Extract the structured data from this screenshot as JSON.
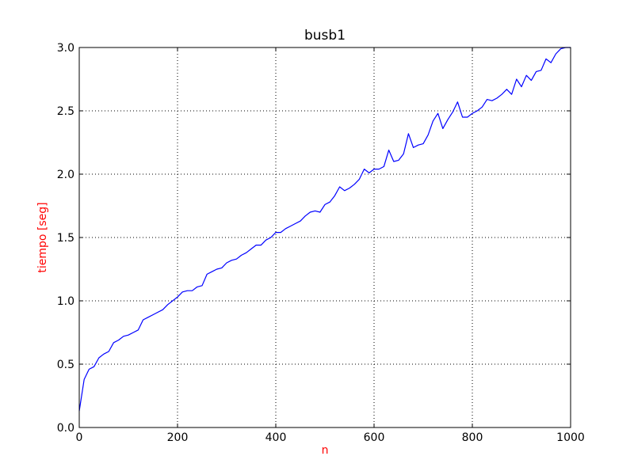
{
  "chart_data": {
    "type": "line",
    "title": "busb1",
    "xlabel": "n",
    "ylabel": "tiempo [seg]",
    "xlim": [
      0,
      1000
    ],
    "ylim": [
      0,
      3.0
    ],
    "grid": true,
    "x_ticks": [
      0,
      200,
      400,
      600,
      800,
      1000
    ],
    "x_tick_labels": [
      "0",
      "200",
      "400",
      "600",
      "800",
      "1000"
    ],
    "y_ticks": [
      0,
      0.5,
      1.0,
      1.5,
      2.0,
      2.5,
      3.0
    ],
    "y_tick_labels": [
      "0.0",
      "0.5",
      "1.0",
      "1.5",
      "2.0",
      "2.5",
      "3.0"
    ],
    "colors": {
      "line": "#0000ff",
      "axis_labels": "#ff0000",
      "grid": "#000000"
    },
    "series": [
      {
        "x": [
          0,
          10,
          20,
          30,
          40,
          50,
          60,
          70,
          80,
          90,
          100,
          110,
          120,
          130,
          140,
          150,
          160,
          170,
          180,
          190,
          200,
          210,
          220,
          230,
          240,
          250,
          260,
          270,
          280,
          290,
          300,
          310,
          320,
          330,
          340,
          350,
          360,
          370,
          380,
          390,
          400,
          410,
          420,
          430,
          440,
          450,
          460,
          470,
          480,
          490,
          500,
          510,
          520,
          530,
          540,
          550,
          560,
          570,
          580,
          590,
          600,
          610,
          620,
          630,
          640,
          650,
          660,
          670,
          680,
          690,
          700,
          710,
          720,
          730,
          740,
          750,
          760,
          770,
          780,
          790,
          800,
          810,
          820,
          830,
          840,
          850,
          860,
          870,
          880,
          890,
          900,
          910,
          920,
          930,
          940,
          950,
          960,
          970,
          980,
          990,
          1000
        ],
        "values": [
          0.13,
          0.38,
          0.46,
          0.48,
          0.55,
          0.58,
          0.6,
          0.67,
          0.69,
          0.72,
          0.73,
          0.75,
          0.77,
          0.85,
          0.87,
          0.89,
          0.91,
          0.93,
          0.97,
          1.0,
          1.03,
          1.07,
          1.08,
          1.08,
          1.11,
          1.12,
          1.21,
          1.23,
          1.25,
          1.26,
          1.3,
          1.32,
          1.33,
          1.36,
          1.38,
          1.41,
          1.44,
          1.44,
          1.48,
          1.5,
          1.54,
          1.54,
          1.57,
          1.59,
          1.61,
          1.63,
          1.67,
          1.7,
          1.71,
          1.7,
          1.76,
          1.78,
          1.83,
          1.9,
          1.87,
          1.89,
          1.92,
          1.96,
          2.04,
          2.01,
          2.04,
          2.04,
          2.06,
          2.19,
          2.1,
          2.11,
          2.16,
          2.32,
          2.21,
          2.23,
          2.24,
          2.31,
          2.42,
          2.48,
          2.36,
          2.43,
          2.49,
          2.57,
          2.45,
          2.45,
          2.48,
          2.5,
          2.53,
          2.59,
          2.58,
          2.6,
          2.63,
          2.67,
          2.63,
          2.75,
          2.69,
          2.78,
          2.74,
          2.81,
          2.82,
          2.91,
          2.88,
          2.95,
          2.99,
          3.0,
          3.0
        ]
      }
    ]
  }
}
